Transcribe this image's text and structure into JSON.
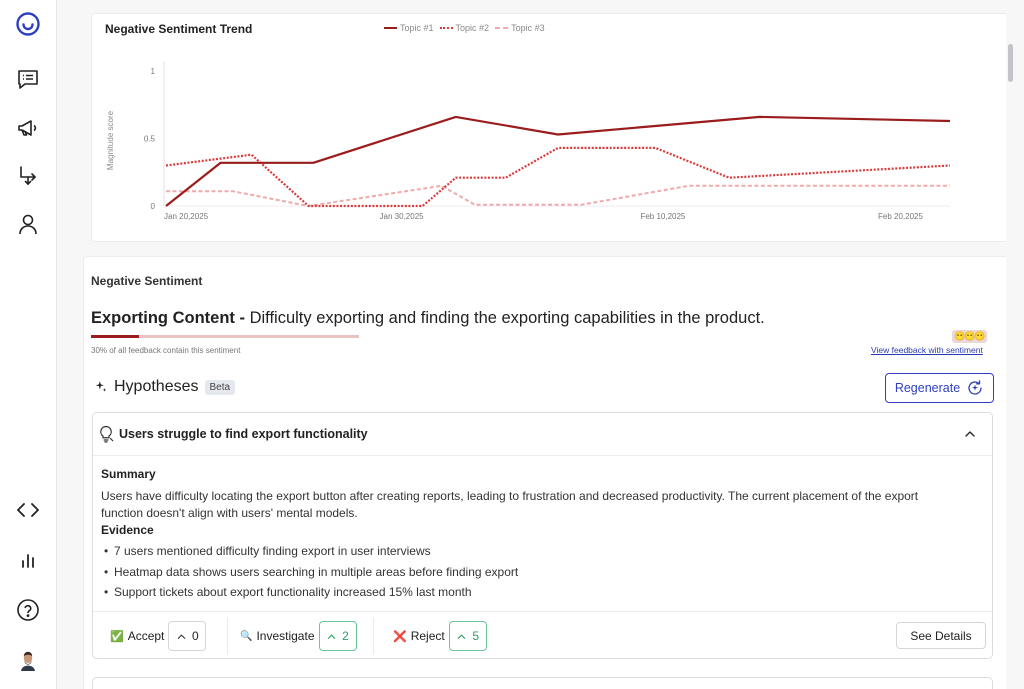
{
  "sidebar": {
    "icons": [
      "logo-icon",
      "chat-icon",
      "megaphone-icon",
      "routing-icon",
      "user-icon",
      "code-icon",
      "chart-icon",
      "help-icon",
      "avatar"
    ]
  },
  "chart_data": {
    "type": "line",
    "title": "Negative Sentiment Trend",
    "ylabel": "Magnitude score",
    "xlabel": "",
    "ylim": [
      0,
      1
    ],
    "y_ticks": [
      "0",
      "0.5",
      "1"
    ],
    "x_ticks": [
      "Jan 20,2025",
      "Jan 30,2025",
      "Feb 10,2025",
      "Feb 20,2025"
    ],
    "x_tick_days": [
      0,
      10,
      21,
      31
    ],
    "legend_position": "top-center",
    "grid": "vertical-axis-only",
    "series": [
      {
        "name": "Topic #1",
        "color": "#9b1c1c",
        "style": "solid",
        "x": [
          0,
          2.3,
          6.2,
          12.2,
          16.5,
          25,
          33
        ],
        "y": [
          0.0,
          0.32,
          0.32,
          0.66,
          0.53,
          0.66,
          0.63
        ]
      },
      {
        "name": "Topic #2",
        "color": "#d93a3a",
        "style": "dotted",
        "x": [
          0,
          3.6,
          6.0,
          10.8,
          12.2,
          14.3,
          16.5,
          20.6,
          23.7,
          33
        ],
        "y": [
          0.3,
          0.38,
          0.0,
          0.0,
          0.21,
          0.21,
          0.43,
          0.43,
          0.21,
          0.3
        ]
      },
      {
        "name": "Topic #3",
        "color": "#f0aaaa",
        "style": "dashed",
        "x": [
          0,
          2.8,
          6.0,
          11.6,
          13.0,
          17.5,
          22.0,
          33
        ],
        "y": [
          0.11,
          0.11,
          0.0,
          0.15,
          0.01,
          0.01,
          0.15,
          0.15
        ]
      }
    ]
  },
  "sentiment": {
    "section_label": "Negative Sentiment",
    "topic_name": "Exporting Content - ",
    "topic_desc": "Difficulty exporting and finding the exporting capabilities in the product.",
    "progress_fraction": 0.3,
    "percent_text": "30% of all feedback contain this sentiment",
    "emoji_badge": "😶😶😶",
    "view_link": "View feedback with sentiment"
  },
  "hypotheses": {
    "title": "Hypotheses",
    "beta": "Beta",
    "regenerate": "Regenerate",
    "card": {
      "title": "Users struggle to find export functionality",
      "summary_label": "Summary",
      "summary": "Users have difficulty locating the export button after creating reports, leading to frustration and decreased productivity. The current placement of the export function doesn't align with users' mental models.",
      "evidence_label": "Evidence",
      "evidence": [
        "7 users mentioned difficulty finding export in user interviews",
        "Heatmap data shows users searching in multiple areas before finding export",
        "Support tickets about export functionality increased 15% last month"
      ],
      "accept_label": "Accept",
      "accept_count": "0",
      "investigate_label": "Investigate",
      "investigate_count": "2",
      "reject_label": "Reject",
      "reject_count": "5",
      "see_details": "See Details",
      "accept_emoji": "✅",
      "investigate_emoji": "🔍",
      "reject_emoji": "❌"
    }
  },
  "colors": {
    "accent": "#2f3fbf",
    "negative_dark": "#9b1c1c",
    "success": "#2c9e66"
  }
}
